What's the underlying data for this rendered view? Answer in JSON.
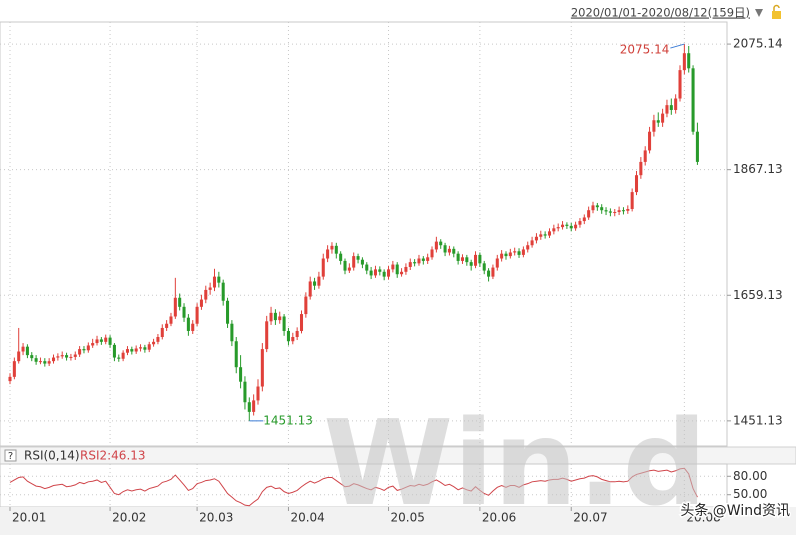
{
  "chart_data": [
    {
      "type": "candlestick",
      "header": "2020/01/01-2020/08/12(159日)",
      "open": [
        1517,
        1524,
        1550,
        1566,
        1574,
        1560,
        1555,
        1549,
        1550,
        1546,
        1550,
        1556,
        1558,
        1560,
        1556,
        1557,
        1561,
        1570,
        1568,
        1576,
        1580,
        1586,
        1582,
        1589,
        1577,
        1556,
        1554,
        1564,
        1570,
        1566,
        1571,
        1573,
        1569,
        1578,
        1582,
        1590,
        1605,
        1612,
        1624,
        1655,
        1640,
        1622,
        1600,
        1612,
        1640,
        1652,
        1668,
        1672,
        1690,
        1680,
        1650,
        1612,
        1583,
        1540,
        1516,
        1482,
        1466,
        1485,
        1508,
        1570,
        1616,
        1630,
        1618,
        1624,
        1600,
        1583,
        1590,
        1600,
        1628,
        1657,
        1682,
        1675,
        1690,
        1720,
        1735,
        1741,
        1728,
        1716,
        1700,
        1705,
        1724,
        1718,
        1710,
        1700,
        1692,
        1702,
        1698,
        1690,
        1702,
        1710,
        1694,
        1698,
        1706,
        1714,
        1712,
        1720,
        1716,
        1722,
        1735,
        1748,
        1742,
        1730,
        1736,
        1728,
        1716,
        1722,
        1714,
        1708,
        1726,
        1712,
        1700,
        1690,
        1705,
        1720,
        1728,
        1724,
        1730,
        1732,
        1726,
        1735,
        1742,
        1750,
        1756,
        1760,
        1758,
        1765,
        1770,
        1772,
        1776,
        1774,
        1770,
        1776,
        1782,
        1788,
        1800,
        1808,
        1805,
        1800,
        1798,
        1796,
        1797,
        1800,
        1799,
        1802,
        1830,
        1858,
        1880,
        1899,
        1930,
        1949,
        1945,
        1960,
        1974,
        1966,
        1985,
        2032,
        2060,
        2035,
        1930
      ],
      "high": [
        1530,
        1556,
        1605,
        1580,
        1578,
        1565,
        1560,
        1556,
        1555,
        1555,
        1561,
        1563,
        1566,
        1564,
        1562,
        1566,
        1575,
        1575,
        1581,
        1587,
        1592,
        1590,
        1594,
        1593,
        1580,
        1561,
        1568,
        1575,
        1574,
        1576,
        1578,
        1577,
        1582,
        1587,
        1595,
        1611,
        1618,
        1630,
        1688,
        1662,
        1646,
        1628,
        1618,
        1646,
        1660,
        1675,
        1680,
        1703,
        1698,
        1685,
        1655,
        1618,
        1590,
        1560,
        1525,
        1490,
        1495,
        1520,
        1580,
        1625,
        1640,
        1636,
        1632,
        1628,
        1605,
        1597,
        1606,
        1634,
        1664,
        1690,
        1688,
        1698,
        1728,
        1742,
        1747,
        1746,
        1732,
        1720,
        1712,
        1730,
        1728,
        1722,
        1714,
        1706,
        1708,
        1707,
        1702,
        1708,
        1716,
        1714,
        1704,
        1712,
        1720,
        1719,
        1726,
        1724,
        1728,
        1740,
        1756,
        1752,
        1746,
        1741,
        1740,
        1732,
        1727,
        1726,
        1718,
        1732,
        1730,
        1716,
        1704,
        1710,
        1726,
        1734,
        1732,
        1736,
        1738,
        1737,
        1740,
        1748,
        1756,
        1762,
        1766,
        1765,
        1770,
        1776,
        1778,
        1782,
        1780,
        1779,
        1781,
        1787,
        1793,
        1806,
        1814,
        1812,
        1810,
        1805,
        1803,
        1802,
        1806,
        1805,
        1808,
        1836,
        1865,
        1888,
        1906,
        1938,
        1958,
        1962,
        1968,
        1983,
        1985,
        1992,
        2040,
        2075.14,
        2072,
        2040,
        1945
      ],
      "low": [
        1512,
        1520,
        1546,
        1560,
        1555,
        1550,
        1544,
        1545,
        1541,
        1542,
        1546,
        1551,
        1554,
        1551,
        1551,
        1552,
        1557,
        1563,
        1564,
        1572,
        1576,
        1577,
        1578,
        1572,
        1550,
        1549,
        1550,
        1560,
        1561,
        1562,
        1566,
        1564,
        1565,
        1574,
        1578,
        1586,
        1600,
        1608,
        1620,
        1634,
        1615,
        1592,
        1595,
        1608,
        1635,
        1646,
        1660,
        1666,
        1672,
        1642,
        1605,
        1575,
        1530,
        1505,
        1470,
        1451.13,
        1460,
        1478,
        1500,
        1565,
        1610,
        1610,
        1612,
        1592,
        1576,
        1578,
        1585,
        1596,
        1622,
        1652,
        1668,
        1670,
        1685,
        1714,
        1728,
        1720,
        1710,
        1694,
        1696,
        1700,
        1712,
        1704,
        1694,
        1686,
        1688,
        1692,
        1684,
        1685,
        1697,
        1688,
        1690,
        1693,
        1701,
        1707,
        1708,
        1710,
        1711,
        1718,
        1730,
        1736,
        1724,
        1725,
        1722,
        1710,
        1711,
        1708,
        1700,
        1704,
        1706,
        1694,
        1682,
        1686,
        1700,
        1715,
        1718,
        1720,
        1725,
        1721,
        1722,
        1730,
        1738,
        1745,
        1751,
        1753,
        1754,
        1760,
        1765,
        1768,
        1769,
        1765,
        1766,
        1771,
        1777,
        1784,
        1795,
        1799,
        1794,
        1792,
        1790,
        1790,
        1792,
        1793,
        1794,
        1798,
        1825,
        1852,
        1874,
        1894,
        1922,
        1938,
        1938,
        1954,
        1958,
        1960,
        1980,
        2025,
        2028,
        1925,
        1875
      ],
      "close": [
        1524,
        1550,
        1566,
        1574,
        1560,
        1555,
        1549,
        1550,
        1546,
        1550,
        1556,
        1558,
        1560,
        1556,
        1557,
        1561,
        1570,
        1568,
        1576,
        1580,
        1586,
        1582,
        1589,
        1577,
        1556,
        1554,
        1564,
        1570,
        1566,
        1571,
        1573,
        1569,
        1578,
        1582,
        1590,
        1605,
        1612,
        1624,
        1655,
        1640,
        1622,
        1600,
        1612,
        1640,
        1652,
        1668,
        1672,
        1690,
        1680,
        1650,
        1612,
        1583,
        1540,
        1516,
        1482,
        1466,
        1485,
        1508,
        1570,
        1616,
        1630,
        1618,
        1624,
        1600,
        1583,
        1590,
        1600,
        1628,
        1657,
        1682,
        1675,
        1690,
        1720,
        1735,
        1741,
        1728,
        1716,
        1700,
        1705,
        1724,
        1718,
        1710,
        1700,
        1692,
        1702,
        1698,
        1690,
        1702,
        1710,
        1694,
        1698,
        1706,
        1714,
        1712,
        1720,
        1716,
        1722,
        1735,
        1748,
        1742,
        1730,
        1736,
        1728,
        1716,
        1722,
        1714,
        1708,
        1726,
        1712,
        1700,
        1690,
        1705,
        1720,
        1728,
        1724,
        1730,
        1732,
        1726,
        1735,
        1742,
        1750,
        1756,
        1760,
        1758,
        1765,
        1770,
        1772,
        1776,
        1774,
        1770,
        1776,
        1782,
        1788,
        1800,
        1808,
        1805,
        1800,
        1798,
        1796,
        1797,
        1800,
        1799,
        1802,
        1830,
        1858,
        1880,
        1899,
        1930,
        1949,
        1945,
        1960,
        1974,
        1966,
        1985,
        2032,
        2060,
        2035,
        1930,
        1880
      ],
      "up_color": "#e0403a",
      "down_color": "#279a2a",
      "xlim": [
        -2.3,
        164.8
      ],
      "xticks": [
        {
          "value": 0,
          "label": "20.01"
        },
        {
          "value": 23,
          "label": "20.02"
        },
        {
          "value": 43,
          "label": "20.03"
        },
        {
          "value": 64,
          "label": "20.04"
        },
        {
          "value": 87,
          "label": "20.05"
        },
        {
          "value": 108,
          "label": "20.06"
        },
        {
          "value": 129,
          "label": "20.07"
        },
        {
          "value": 155,
          "label": "20.08"
        }
      ],
      "ylim": [
        1409.5,
        2111.7
      ],
      "yticks": [
        2075.14,
        1867.13,
        1659.13,
        1451.13
      ],
      "grid": true
    },
    {
      "type": "line",
      "title": "RSI(0,14)",
      "legend": "RSI2:46.13",
      "help": "?",
      "color": "#d0454a",
      "values": [
        70,
        74,
        78,
        79,
        72,
        68,
        64,
        63,
        60,
        62,
        65,
        66,
        67,
        63,
        64,
        66,
        70,
        68,
        71,
        72,
        74,
        70,
        72,
        62,
        52,
        50,
        55,
        58,
        56,
        58,
        59,
        56,
        60,
        62,
        64,
        70,
        72,
        75,
        82,
        74,
        66,
        57,
        60,
        68,
        70,
        73,
        74,
        76,
        72,
        62,
        52,
        46,
        40,
        37,
        33,
        32,
        38,
        43,
        55,
        62,
        64,
        60,
        61,
        55,
        52,
        54,
        57,
        63,
        68,
        72,
        69,
        72,
        76,
        78,
        78,
        73,
        68,
        63,
        64,
        68,
        66,
        63,
        60,
        58,
        62,
        60,
        57,
        62,
        64,
        57,
        59,
        62,
        65,
        64,
        67,
        65,
        67,
        71,
        74,
        70,
        65,
        67,
        63,
        58,
        61,
        58,
        56,
        63,
        57,
        52,
        49,
        56,
        62,
        65,
        62,
        65,
        65,
        62,
        66,
        68,
        71,
        72,
        73,
        72,
        74,
        75,
        75,
        77,
        75,
        72,
        74,
        76,
        77,
        80,
        81,
        79,
        75,
        73,
        71,
        71,
        72,
        71,
        72,
        79,
        83,
        85,
        87,
        89,
        90,
        88,
        89,
        90,
        87,
        89,
        92,
        93,
        84,
        60,
        46.13
      ],
      "ylim": [
        30,
        100
      ],
      "yticks": [
        {
          "value": 80,
          "label": "80.00"
        },
        {
          "value": 50,
          "label": "50.00"
        }
      ]
    }
  ],
  "overlay": {
    "watermark": "Win.d",
    "credit": "头条 @Wind资讯"
  }
}
